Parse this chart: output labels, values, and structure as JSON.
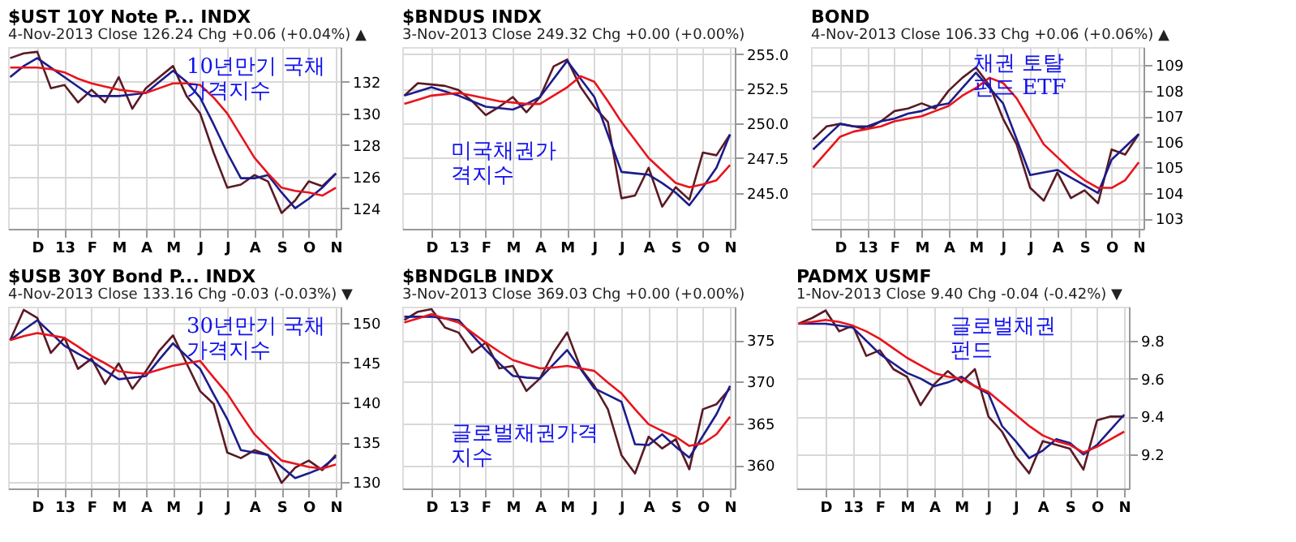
{
  "chart_data": [
    {
      "type": "line",
      "title": "$UST 10Y Note P... INDX",
      "subtitle": "4-Nov-2013 Close 126.24 Chg +0.06 (+0.04%) ▲",
      "annotations": [
        "10년만기 국채\n가격지수"
      ],
      "grid": true,
      "categories": [
        null,
        null,
        "D",
        null,
        "13",
        null,
        "F",
        null,
        "M",
        null,
        "A",
        null,
        "M",
        null,
        "J",
        null,
        "J",
        null,
        "A",
        null,
        "S",
        null,
        "O",
        null,
        "N"
      ],
      "ylim": [
        122.7,
        134.2
      ],
      "yticks": [
        124,
        126,
        128,
        130,
        132
      ],
      "series": [
        {
          "color": "#5a1a24",
          "values": [
            133.5,
            133.8,
            133.9,
            131.6,
            131.8,
            130.7,
            131.5,
            130.7,
            132.3,
            130.3,
            131.6,
            132.3,
            133.0,
            131.1,
            130.0,
            127.5,
            125.3,
            125.5,
            126.1,
            125.7,
            123.7,
            124.5,
            125.7,
            125.4,
            126.2
          ]
        },
        {
          "color": "#1c1c8c",
          "values": [
            132.3,
            133.0,
            133.5,
            132.9,
            132.3,
            131.7,
            131.1,
            131.1,
            131.1,
            131.2,
            131.3,
            132.0,
            132.7,
            132.0,
            131.0,
            129.3,
            127.5,
            125.9,
            125.9,
            126.1,
            125.0,
            124.0,
            124.6,
            125.3,
            126.2
          ]
        },
        {
          "color": "#e8141c",
          "values": [
            132.9,
            132.9,
            132.9,
            132.8,
            132.6,
            132.2,
            131.9,
            131.7,
            131.5,
            131.4,
            131.3,
            131.6,
            131.9,
            131.9,
            131.8,
            131.0,
            130.0,
            128.6,
            127.2,
            126.2,
            125.3,
            125.1,
            125.0,
            124.8,
            125.3
          ]
        }
      ]
    },
    {
      "type": "line",
      "title": "$BNDUS INDX",
      "subtitle": "3-Nov-2013 Close 249.32 Chg +0.00 (+0.00%)",
      "annotations": [
        "미국채권가\n격지수"
      ],
      "grid": true,
      "categories": [
        null,
        null,
        "D",
        null,
        "13",
        null,
        "F",
        null,
        "M",
        null,
        "A",
        null,
        "M",
        null,
        "J",
        null,
        "J",
        null,
        "A",
        null,
        "S",
        null,
        "O",
        null,
        "N"
      ],
      "ylim": [
        242.4,
        255.5
      ],
      "yticks": [
        {
          "value": 245,
          "label": "245.0"
        },
        247.5,
        {
          "value": 250,
          "label": "250.0"
        },
        252.5,
        {
          "value": 255,
          "label": "255.0"
        }
      ],
      "series": [
        {
          "color": "#5a1a24",
          "values": [
            252.0,
            252.9,
            252.8,
            252.7,
            252.4,
            251.6,
            250.6,
            251.2,
            251.9,
            250.8,
            251.9,
            254.1,
            254.6,
            252.6,
            251.2,
            250.1,
            244.6,
            244.8,
            246.8,
            244.0,
            245.4,
            244.5,
            247.9,
            247.7,
            249.2
          ]
        },
        {
          "color": "#1c1c8c",
          "values": [
            252.0,
            252.3,
            252.6,
            252.3,
            252.0,
            251.6,
            251.2,
            251.1,
            251.0,
            251.4,
            251.9,
            253.2,
            254.5,
            253.2,
            251.9,
            249.2,
            246.5,
            246.4,
            246.3,
            245.7,
            245.0,
            244.1,
            245.4,
            246.8,
            249.2
          ]
        },
        {
          "color": "#e8141c",
          "values": [
            251.4,
            251.7,
            252.0,
            252.1,
            252.2,
            252.0,
            251.8,
            251.6,
            251.5,
            251.4,
            251.4,
            252.0,
            252.6,
            253.4,
            253.0,
            251.6,
            250.1,
            248.8,
            247.5,
            246.6,
            245.7,
            245.4,
            245.6,
            245.9,
            247.0
          ]
        }
      ]
    },
    {
      "type": "line",
      "title": "BOND",
      "subtitle": "4-Nov-2013 Close 106.33 Chg +0.06 (+0.06%) ▲",
      "annotations": [
        "채권 토탈\n펀드 ETF"
      ],
      "grid": true,
      "categories": [
        null,
        null,
        "D",
        null,
        "13",
        null,
        "F",
        null,
        "M",
        null,
        "A",
        null,
        "M",
        null,
        "J",
        null,
        "J",
        null,
        "A",
        null,
        "S",
        null,
        "O",
        null,
        "N"
      ],
      "ylim": [
        102.6,
        109.7
      ],
      "yticks": [
        103,
        104,
        105,
        106,
        107,
        108,
        109
      ],
      "series": [
        {
          "color": "#5a1a24",
          "values": [
            106.1,
            106.6,
            106.7,
            106.6,
            106.5,
            106.8,
            107.2,
            107.3,
            107.5,
            107.3,
            108.0,
            108.5,
            108.9,
            108.2,
            106.9,
            105.9,
            104.2,
            103.7,
            104.8,
            103.8,
            104.1,
            103.6,
            105.7,
            105.5,
            106.3
          ]
        },
        {
          "color": "#1c1c8c",
          "values": [
            105.7,
            106.2,
            106.7,
            106.6,
            106.6,
            106.8,
            106.9,
            107.1,
            107.2,
            107.4,
            107.5,
            108.1,
            108.7,
            108.1,
            107.5,
            106.1,
            104.7,
            104.8,
            104.9,
            104.6,
            104.3,
            104.0,
            105.3,
            105.8,
            106.3
          ]
        },
        {
          "color": "#e8141c",
          "values": [
            105.0,
            105.6,
            106.2,
            106.4,
            106.5,
            106.6,
            106.8,
            106.9,
            107.0,
            107.2,
            107.4,
            107.8,
            108.1,
            108.5,
            108.3,
            107.7,
            106.8,
            105.9,
            105.4,
            104.9,
            104.5,
            104.2,
            104.2,
            104.5,
            105.2
          ]
        }
      ]
    },
    {
      "type": "line",
      "title": "$USB 30Y Bond P... INDX",
      "subtitle": "4-Nov-2013 Close 133.16 Chg -0.03 (-0.03%) ▼",
      "annotations": [
        "30년만기 국채\n가격지수"
      ],
      "grid": true,
      "categories": [
        null,
        null,
        "D",
        null,
        "13",
        null,
        "F",
        null,
        "M",
        null,
        "A",
        null,
        "M",
        null,
        "J",
        null,
        "J",
        null,
        "A",
        null,
        "S",
        null,
        "O",
        null,
        "N"
      ],
      "ylim": [
        129.2,
        152
      ],
      "yticks": [
        130,
        135,
        140,
        145,
        150
      ],
      "series": [
        {
          "color": "#5a1a24",
          "values": [
            147.8,
            151.6,
            150.6,
            146.2,
            148.1,
            144.2,
            145.5,
            142.3,
            144.9,
            141.7,
            143.9,
            146.5,
            148.4,
            144.9,
            141.4,
            139.8,
            133.7,
            133.0,
            134.0,
            133.4,
            129.9,
            131.8,
            132.7,
            131.5,
            133.4
          ]
        },
        {
          "color": "#1c1c8c",
          "values": [
            147.8,
            149.1,
            150.3,
            148.7,
            147.1,
            146.1,
            145.2,
            144.0,
            142.9,
            143.1,
            143.3,
            145.4,
            147.4,
            145.8,
            144.2,
            141.0,
            137.9,
            134.0,
            133.7,
            133.4,
            131.9,
            130.5,
            131.1,
            131.8,
            133.2
          ]
        },
        {
          "color": "#e8141c",
          "values": [
            147.8,
            148.3,
            148.7,
            148.4,
            148.1,
            147.0,
            145.8,
            144.9,
            143.9,
            143.7,
            143.6,
            144.1,
            144.6,
            144.9,
            145.2,
            143.1,
            141.1,
            138.5,
            136.0,
            134.3,
            132.7,
            132.3,
            131.9,
            131.7,
            132.2
          ]
        }
      ]
    },
    {
      "type": "line",
      "title": "$BNDGLB INDX",
      "subtitle": "3-Nov-2013 Close 369.03 Chg +0.00 (+0.00%)",
      "annotations": [
        "글로벌채권가격\n지수"
      ],
      "grid": true,
      "categories": [
        null,
        null,
        "D",
        null,
        "13",
        null,
        "F",
        null,
        "M",
        null,
        "A",
        null,
        "M",
        null,
        "J",
        null,
        "J",
        null,
        "A",
        null,
        "S",
        null,
        "O",
        null,
        "N"
      ],
      "ylim": [
        357.2,
        379
      ],
      "yticks": [
        360,
        365,
        370,
        375
      ],
      "series": [
        {
          "color": "#5a1a24",
          "values": [
            377.4,
            378.4,
            378.7,
            376.5,
            375.9,
            373.5,
            374.7,
            371.6,
            371.9,
            368.9,
            370.4,
            373.5,
            375.9,
            371.6,
            369.5,
            366.7,
            361.2,
            359.0,
            363.4,
            362.0,
            363.1,
            359.5,
            366.7,
            367.3,
            369.2
          ]
        },
        {
          "color": "#1c1c8c",
          "values": [
            377.8,
            377.8,
            377.8,
            377.6,
            377.4,
            375.6,
            373.8,
            372.2,
            370.7,
            370.5,
            370.4,
            372.1,
            373.8,
            371.5,
            369.2,
            368.4,
            367.6,
            362.5,
            362.4,
            363.7,
            362.2,
            360.9,
            363.5,
            366.1,
            369.5
          ]
        },
        {
          "color": "#e8141c",
          "values": [
            377.1,
            377.6,
            378.1,
            377.6,
            377.1,
            375.9,
            374.7,
            373.6,
            372.6,
            372.1,
            371.6,
            371.7,
            371.9,
            371.6,
            371.3,
            369.9,
            368.6,
            366.7,
            364.9,
            364.1,
            363.4,
            362.3,
            362.6,
            363.7,
            365.8
          ]
        }
      ]
    },
    {
      "type": "line",
      "title": "PADMX USMF",
      "subtitle": "1-Nov-2013 Close 9.40 Chg -0.04 (-0.42%) ▼",
      "annotations": [
        "글로벌채권\n펀드"
      ],
      "grid": true,
      "categories": [
        null,
        null,
        "D",
        null,
        "13",
        null,
        "F",
        null,
        "M",
        null,
        "A",
        null,
        "M",
        null,
        "J",
        null,
        "J",
        null,
        "A",
        null,
        "S",
        null,
        "O",
        null,
        "N"
      ],
      "ylim": [
        9.02,
        9.98
      ],
      "yticks": [
        9.2,
        9.4,
        9.6,
        9.8
      ],
      "series": [
        {
          "color": "#5a1a24",
          "values": [
            9.89,
            9.92,
            9.96,
            9.85,
            9.88,
            9.72,
            9.75,
            9.65,
            9.61,
            9.46,
            9.57,
            9.64,
            9.58,
            9.65,
            9.4,
            9.32,
            9.19,
            9.1,
            9.27,
            9.25,
            9.23,
            9.12,
            9.38,
            9.4,
            9.4
          ]
        },
        {
          "color": "#1c1c8c",
          "values": [
            9.89,
            9.89,
            9.89,
            9.88,
            9.87,
            9.8,
            9.73,
            9.68,
            9.63,
            9.6,
            9.56,
            9.58,
            9.61,
            9.56,
            9.52,
            9.35,
            9.27,
            9.18,
            9.22,
            9.28,
            9.26,
            9.2,
            9.25,
            9.33,
            9.41
          ]
        },
        {
          "color": "#e8141c",
          "values": [
            9.89,
            9.9,
            9.91,
            9.9,
            9.88,
            9.85,
            9.81,
            9.76,
            9.71,
            9.67,
            9.63,
            9.61,
            9.6,
            9.56,
            9.53,
            9.47,
            9.41,
            9.35,
            9.3,
            9.27,
            9.25,
            9.21,
            9.24,
            9.28,
            9.32
          ]
        }
      ]
    }
  ]
}
